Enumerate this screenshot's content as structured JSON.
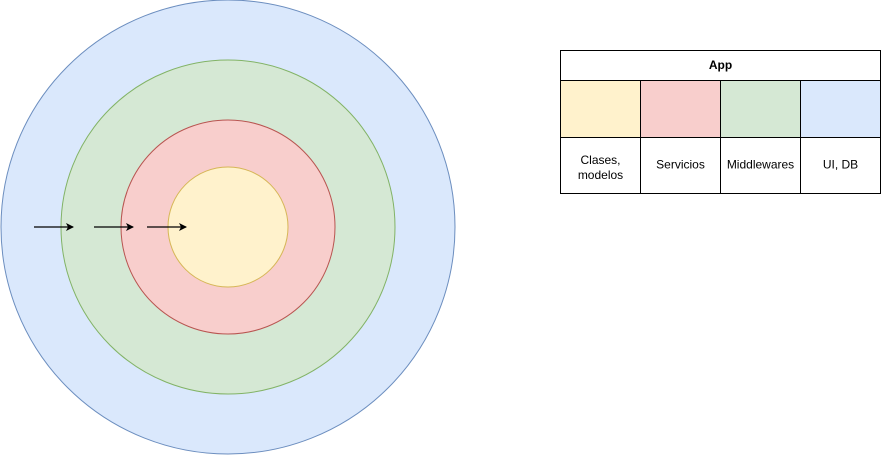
{
  "legend": {
    "title": "App",
    "layers": [
      {
        "label_lines": [
          "Clases,",
          "modelos"
        ],
        "fill": "#fff2cc",
        "stroke": "#d6b656"
      },
      {
        "label_lines": [
          "Servicios"
        ],
        "fill": "#f8cecc",
        "stroke": "#b85450"
      },
      {
        "label_lines": [
          "Middlewares"
        ],
        "fill": "#d5e8d4",
        "stroke": "#82b366"
      },
      {
        "label_lines": [
          "UI, DB"
        ],
        "fill": "#dae8fc",
        "stroke": "#6c8ebf"
      }
    ]
  },
  "rings": [
    {
      "layer": "UI, DB",
      "fill": "#dae8fc",
      "stroke": "#6c8ebf"
    },
    {
      "layer": "Middlewares",
      "fill": "#d5e8d4",
      "stroke": "#82b366"
    },
    {
      "layer": "Servicios",
      "fill": "#f8cecc",
      "stroke": "#b85450"
    },
    {
      "layer": "Clases, modelos",
      "fill": "#fff2cc",
      "stroke": "#d6b656"
    }
  ],
  "arrows": {
    "count": 3,
    "color": "#000000",
    "icon": "arrow-right-icon"
  },
  "colors": {
    "border": "#000000",
    "background": "#ffffff"
  }
}
